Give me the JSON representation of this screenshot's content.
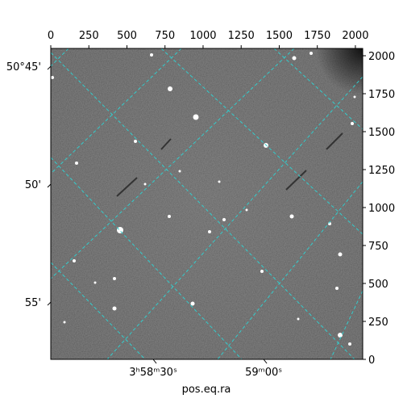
{
  "chart_data": {
    "type": "image",
    "xlabel": "pos.eq.ra",
    "xlim": [
      0,
      2048
    ],
    "xticks": [
      0,
      250,
      500,
      750,
      1000,
      1250,
      1500,
      1750,
      2000
    ],
    "ylim": [
      0,
      2048
    ],
    "yticks": [
      0,
      250,
      500,
      750,
      1000,
      1250,
      1500,
      1750,
      2000
    ],
    "ra_lim": [
      14282.2,
      14366.9
    ],
    "ra_ticks": [
      {
        "value": 14310,
        "label": "3ʰ58ᵐ30ˢ"
      },
      {
        "value": 14340,
        "label": "59ᵐ00ˢ"
      }
    ],
    "dec_lim": [
      50.7374,
      50.9572
    ],
    "dec_ticks": [
      {
        "value": 50.75,
        "label": "50°45'"
      },
      {
        "value": 50.8333,
        "label": "50'"
      },
      {
        "value": 50.9167,
        "label": "55'"
      }
    ],
    "grid": true,
    "grid_color": "#33cccc"
  }
}
